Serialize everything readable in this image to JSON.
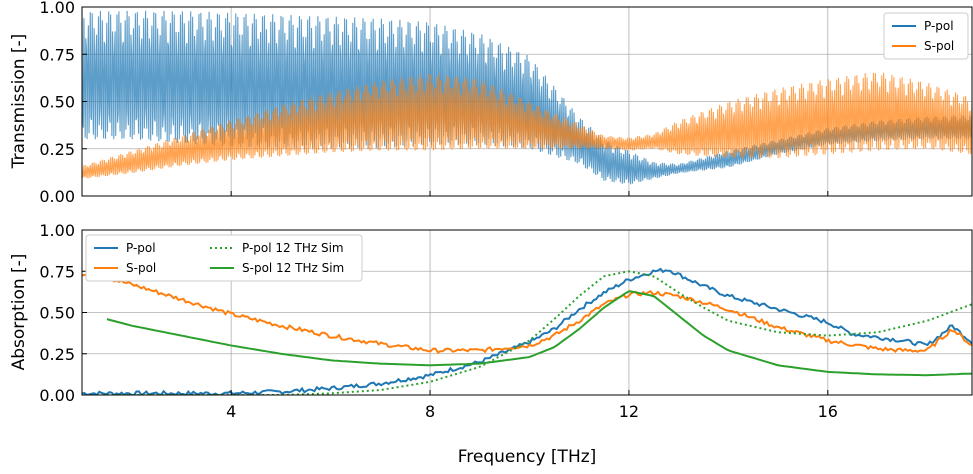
{
  "chart_data": [
    {
      "type": "line",
      "title": "",
      "xlabel": "",
      "ylabel": "Transmission [-]",
      "xlim": [
        1,
        18.9
      ],
      "ylim": [
        0,
        1.0
      ],
      "x_ticks": [
        4,
        8,
        12,
        16
      ],
      "x_tick_labels": [
        "",
        "",
        "",
        ""
      ],
      "y_ticks": [
        0,
        0.25,
        0.5,
        0.75,
        1.0
      ],
      "y_tick_labels": [
        "0.00",
        "0.25",
        "0.50",
        "0.75",
        "1.00"
      ],
      "grid": true,
      "legend_position": "top-right",
      "series": [
        {
          "name": "P-pol",
          "color": "#1f77b4",
          "render": "oscillating-band",
          "x": [
            1,
            2,
            3,
            4,
            5,
            6,
            7,
            8,
            9,
            10,
            11,
            11.5,
            12,
            12.5,
            13,
            14,
            15,
            16,
            17,
            18,
            18.9
          ],
          "upper": [
            0.98,
            0.98,
            0.98,
            0.97,
            0.96,
            0.95,
            0.94,
            0.92,
            0.86,
            0.74,
            0.42,
            0.3,
            0.24,
            0.18,
            0.17,
            0.24,
            0.3,
            0.36,
            0.4,
            0.42,
            0.43
          ],
          "lower": [
            0.3,
            0.3,
            0.28,
            0.26,
            0.25,
            0.25,
            0.25,
            0.27,
            0.27,
            0.25,
            0.17,
            0.08,
            0.06,
            0.09,
            0.12,
            0.15,
            0.22,
            0.27,
            0.29,
            0.3,
            0.3
          ]
        },
        {
          "name": "S-pol",
          "color": "#ff7f0e",
          "render": "oscillating-band",
          "x": [
            1,
            2,
            3,
            4,
            5,
            6,
            7,
            8,
            9,
            10,
            11,
            11.5,
            12,
            12.5,
            13,
            14,
            15,
            16,
            17,
            18,
            18.9
          ],
          "upper": [
            0.16,
            0.24,
            0.32,
            0.4,
            0.48,
            0.55,
            0.61,
            0.65,
            0.62,
            0.5,
            0.38,
            0.32,
            0.31,
            0.33,
            0.4,
            0.5,
            0.57,
            0.62,
            0.66,
            0.6,
            0.52
          ],
          "lower": [
            0.09,
            0.12,
            0.16,
            0.19,
            0.21,
            0.23,
            0.24,
            0.24,
            0.25,
            0.25,
            0.25,
            0.25,
            0.24,
            0.25,
            0.22,
            0.2,
            0.2,
            0.22,
            0.24,
            0.25,
            0.22
          ]
        }
      ]
    },
    {
      "type": "line",
      "title": "",
      "xlabel": "Frequency [THz]",
      "ylabel": "Absorption [-]",
      "xlim": [
        1,
        18.9
      ],
      "ylim": [
        0,
        1.0
      ],
      "x_ticks": [
        4,
        8,
        12,
        16
      ],
      "x_tick_labels": [
        "4",
        "8",
        "12",
        "16"
      ],
      "y_ticks": [
        0,
        0.25,
        0.5,
        0.75,
        1.0
      ],
      "y_tick_labels": [
        "0.00",
        "0.25",
        "0.50",
        "0.75",
        "1.00"
      ],
      "grid": true,
      "legend_position": "top-left",
      "series": [
        {
          "name": "P-pol",
          "color": "#1f77b4",
          "style": "solid",
          "noisy": true,
          "x": [
            1,
            2,
            3,
            4,
            5,
            6,
            7,
            8,
            9,
            10,
            10.5,
            11,
            11.5,
            12,
            12.5,
            12.8,
            13,
            13.5,
            14,
            15,
            16,
            16.5,
            17,
            17.5,
            18,
            18.5,
            18.9
          ],
          "y": [
            0.01,
            0.01,
            0.01,
            0.01,
            0.02,
            0.04,
            0.07,
            0.12,
            0.2,
            0.32,
            0.4,
            0.52,
            0.62,
            0.7,
            0.75,
            0.76,
            0.73,
            0.66,
            0.6,
            0.52,
            0.44,
            0.37,
            0.35,
            0.33,
            0.3,
            0.42,
            0.32
          ]
        },
        {
          "name": "S-pol",
          "color": "#ff7f0e",
          "style": "solid",
          "noisy": true,
          "x": [
            1,
            1.5,
            2,
            3,
            4,
            5,
            6,
            7,
            8,
            9,
            10,
            10.5,
            11,
            11.5,
            12,
            12.5,
            13,
            14,
            15,
            16,
            17,
            17.5,
            18,
            18.5,
            18.9
          ],
          "y": [
            0.73,
            0.71,
            0.67,
            0.58,
            0.49,
            0.42,
            0.36,
            0.31,
            0.27,
            0.27,
            0.3,
            0.36,
            0.45,
            0.55,
            0.61,
            0.62,
            0.6,
            0.52,
            0.41,
            0.33,
            0.28,
            0.27,
            0.27,
            0.4,
            0.3
          ]
        },
        {
          "name": "P-pol 12 THz Sim",
          "color": "#2ca02c",
          "style": "dotted",
          "noisy": false,
          "x": [
            1.5,
            2,
            3,
            4,
            5,
            6,
            7,
            8,
            9,
            10,
            10.5,
            11,
            11.5,
            12,
            12.5,
            13,
            13.5,
            14,
            15,
            16,
            17,
            18,
            18.9
          ],
          "y": [
            0.0,
            0.0,
            0.0,
            0.0,
            0.0,
            0.01,
            0.03,
            0.08,
            0.17,
            0.33,
            0.46,
            0.6,
            0.72,
            0.75,
            0.72,
            0.62,
            0.53,
            0.45,
            0.38,
            0.36,
            0.38,
            0.45,
            0.55
          ]
        },
        {
          "name": "S-pol 12 THz Sim",
          "color": "#2ca02c",
          "style": "solid",
          "noisy": false,
          "x": [
            1.5,
            2,
            3,
            4,
            5,
            6,
            7,
            8,
            9,
            10,
            10.5,
            11,
            11.5,
            12,
            12.5,
            13,
            13.5,
            14,
            15,
            16,
            17,
            18,
            18.9
          ],
          "y": [
            0.46,
            0.42,
            0.36,
            0.3,
            0.25,
            0.21,
            0.19,
            0.18,
            0.19,
            0.23,
            0.29,
            0.4,
            0.53,
            0.63,
            0.6,
            0.48,
            0.36,
            0.27,
            0.18,
            0.14,
            0.125,
            0.12,
            0.13
          ]
        }
      ]
    }
  ]
}
